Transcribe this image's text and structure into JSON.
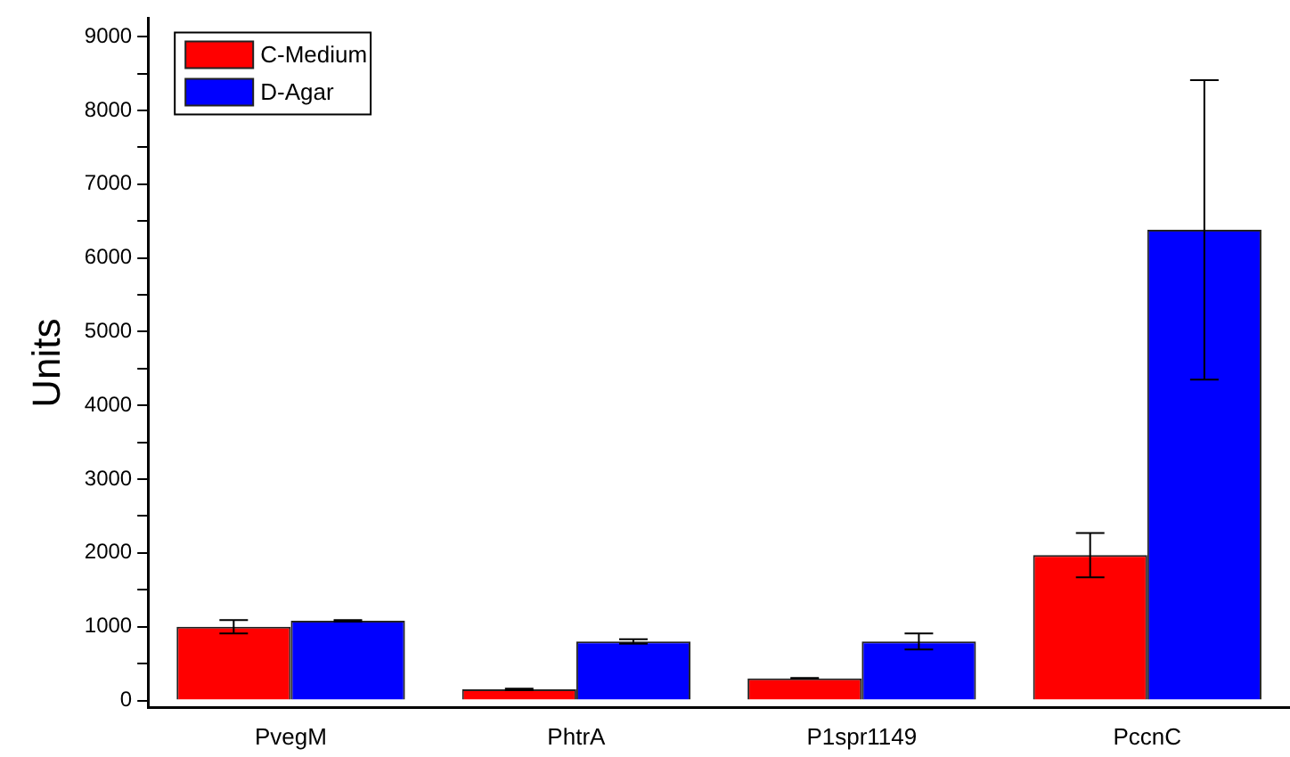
{
  "chart_data": {
    "type": "bar",
    "ylabel": "Units",
    "categories": [
      "PvegM",
      "PhtrA",
      "P1spr1149",
      "PccnC"
    ],
    "series": [
      {
        "name": "C-Medium",
        "color": "#ff0000",
        "values": [
          1000,
          150,
          300,
          1970
        ],
        "errors": [
          90,
          10,
          5,
          300
        ]
      },
      {
        "name": "D-Agar",
        "color": "#0000ff",
        "values": [
          1080,
          800,
          800,
          6380
        ],
        "errors": [
          10,
          30,
          110,
          2030
        ]
      }
    ],
    "ylim": [
      -100,
      9250
    ],
    "yticks": [
      0,
      {
        "value": 500,
        "label": null
      },
      1000,
      {
        "value": 1500,
        "label": null
      },
      2000,
      {
        "value": 2500,
        "label": null
      },
      3000,
      {
        "value": 3500,
        "label": null
      },
      4000,
      {
        "value": 4500,
        "label": null
      },
      5000,
      {
        "value": 5500,
        "label": null
      },
      6000,
      {
        "value": 6500,
        "label": null
      },
      7000,
      {
        "value": 7500,
        "label": null
      },
      8000,
      {
        "value": 8500,
        "label": null
      },
      9000
    ],
    "grid": false,
    "legend": "top left"
  }
}
